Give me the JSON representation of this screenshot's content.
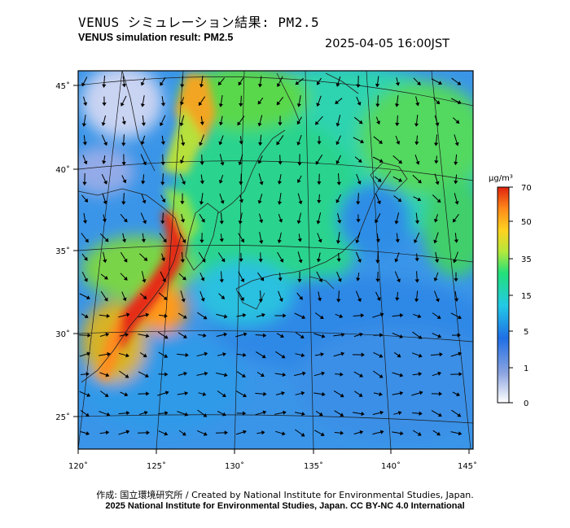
{
  "header": {
    "title_jp": "VENUS シミュレーション結果: PM2.5",
    "title_en": "VENUS simulation result: PM2.5",
    "timestamp": "2025-04-05 16:00JST"
  },
  "map": {
    "lon_ticks": [
      "120˚",
      "125˚",
      "130˚",
      "135˚",
      "140˚",
      "145˚"
    ],
    "lat_ticks": [
      "45˚",
      "40˚",
      "35˚",
      "30˚",
      "25˚"
    ]
  },
  "colorbar": {
    "unit": "μg/m³",
    "ticks": [
      "70",
      "50",
      "35",
      "15",
      "5",
      "1",
      "0"
    ],
    "colors": [
      "#ffffff",
      "#7f9bdf",
      "#1f6fe6",
      "#22c9e6",
      "#22e07a",
      "#b4e83c",
      "#ffd21f",
      "#ff8a1a",
      "#e0230f"
    ]
  },
  "footer": {
    "credit_jp": "作成: 国立環境研究所 / Created by National Institute for Environmental Studies, Japan.",
    "credit_en": "2025 National Institute for Environmental Studies, Japan. CC BY-NC 4.0 International"
  }
}
